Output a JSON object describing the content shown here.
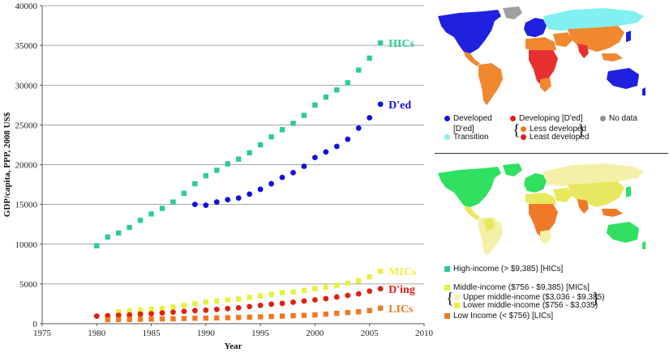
{
  "chart_data": {
    "type": "scatter",
    "ylabel": "GDP/capita, PPP, 2008 US$",
    "xlabel": "Year",
    "xlim": [
      1975,
      2010
    ],
    "ylim": [
      0,
      40000
    ],
    "xticks": [
      1975,
      1980,
      1985,
      1990,
      1995,
      2000,
      2005,
      2010
    ],
    "yticks": [
      0,
      5000,
      10000,
      15000,
      20000,
      25000,
      30000,
      35000,
      40000
    ],
    "grid": "horizontal",
    "series": [
      {
        "name": "HICs",
        "marker": "square",
        "color": "#2ecc8f",
        "x": [
          1980,
          1981,
          1982,
          1983,
          1984,
          1985,
          1986,
          1987,
          1988,
          1989,
          1990,
          1991,
          1992,
          1993,
          1994,
          1995,
          1996,
          1997,
          1998,
          1999,
          2000,
          2001,
          2002,
          2003,
          2004,
          2005,
          2006
        ],
        "y": [
          9800,
          10900,
          11400,
          12100,
          13000,
          13800,
          14500,
          15300,
          16400,
          17600,
          18600,
          19300,
          20100,
          20700,
          21500,
          22500,
          23500,
          24400,
          25200,
          26200,
          27500,
          28500,
          29400,
          30300,
          31900,
          33400,
          35300
        ]
      },
      {
        "name": "D'ed",
        "marker": "circle",
        "color": "#1010e0",
        "x": [
          1989,
          1990,
          1991,
          1992,
          1993,
          1994,
          1995,
          1996,
          1997,
          1998,
          1999,
          2000,
          2001,
          2002,
          2003,
          2004,
          2005,
          2006
        ],
        "y": [
          15000,
          14900,
          15300,
          15600,
          15800,
          16300,
          16900,
          17600,
          18400,
          19000,
          19800,
          20900,
          21600,
          22300,
          23200,
          24600,
          25900,
          27600
        ]
      },
      {
        "name": "MICs",
        "marker": "square",
        "color": "#e8f040",
        "x": [
          1982,
          1983,
          1984,
          1985,
          1986,
          1987,
          1988,
          1989,
          1990,
          1991,
          1992,
          1993,
          1994,
          1995,
          1996,
          1997,
          1998,
          1999,
          2000,
          2001,
          2002,
          2003,
          2004,
          2005,
          2006
        ],
        "y": [
          1500,
          1600,
          1700,
          1800,
          1900,
          2100,
          2300,
          2500,
          2700,
          2850,
          3000,
          3100,
          3300,
          3500,
          3700,
          3900,
          4000,
          4200,
          4400,
          4600,
          4800,
          5100,
          5400,
          5900,
          6600
        ]
      },
      {
        "name": "D'ing",
        "marker": "circle",
        "color": "#e02010",
        "x": [
          1980,
          1981,
          1982,
          1983,
          1984,
          1985,
          1986,
          1987,
          1988,
          1989,
          1990,
          1991,
          1992,
          1993,
          1994,
          1995,
          1996,
          1997,
          1998,
          1999,
          2000,
          2001,
          2002,
          2003,
          2004,
          2005,
          2006
        ],
        "y": [
          950,
          1000,
          1050,
          1100,
          1200,
          1250,
          1350,
          1450,
          1550,
          1650,
          1700,
          1800,
          1900,
          2000,
          2150,
          2300,
          2450,
          2550,
          2700,
          2850,
          3000,
          3150,
          3350,
          3550,
          3750,
          4100,
          4400
        ]
      },
      {
        "name": "LICs",
        "marker": "square",
        "color": "#f07820",
        "x": [
          1981,
          1982,
          1983,
          1984,
          1985,
          1986,
          1987,
          1988,
          1989,
          1990,
          1991,
          1992,
          1993,
          1994,
          1995,
          1996,
          1997,
          1998,
          1999,
          2000,
          2001,
          2002,
          2003,
          2004,
          2005,
          2006
        ],
        "y": [
          500,
          520,
          540,
          560,
          580,
          600,
          620,
          650,
          680,
          700,
          720,
          750,
          780,
          820,
          860,
          900,
          950,
          1000,
          1050,
          1100,
          1200,
          1300,
          1400,
          1500,
          1650,
          1950
        ]
      }
    ]
  },
  "legend_top": {
    "developed": "Developed",
    "developed_ded": "[D'ed]",
    "transition": "Transition",
    "developing": "Developing [D'ed]",
    "less_developed": "Less developed",
    "least_developed": "Least developed",
    "no_data": "No data",
    "colors": {
      "developed": "#1010e0",
      "transition": "#80f0f0",
      "developing": "#e02010",
      "less_developed": "#f07820",
      "least_developed": "#e02010",
      "no_data": "#909090"
    }
  },
  "legend_bottom": {
    "high": "High-income (> $9,385) [HICs]",
    "middle": "Middle-income ($756 - $9,385) [MICs]",
    "upper_middle": "Upper middle-income ($3,036 - $9,385)",
    "lower_middle": "Lower middle-income ($756 - $3,035)",
    "low": "Low Income (< $756) [LICs]",
    "colors": {
      "high": "#2ecc8f",
      "middle": "#e8f040",
      "upper_middle": "#f4f4b0",
      "lower_middle": "#e8f040",
      "low": "#f07820"
    }
  },
  "map_colors": {
    "ocean": "#ffffff",
    "developed": "#2020e0",
    "transition": "#80f0f0",
    "less_developed": "#f08830",
    "least_developed": "#e83030",
    "no_data": "#a0a0a0",
    "high_income": "#30e060",
    "upper_middle": "#f4f0a8",
    "lower_middle": "#e8e860",
    "low_income": "#f07828"
  }
}
